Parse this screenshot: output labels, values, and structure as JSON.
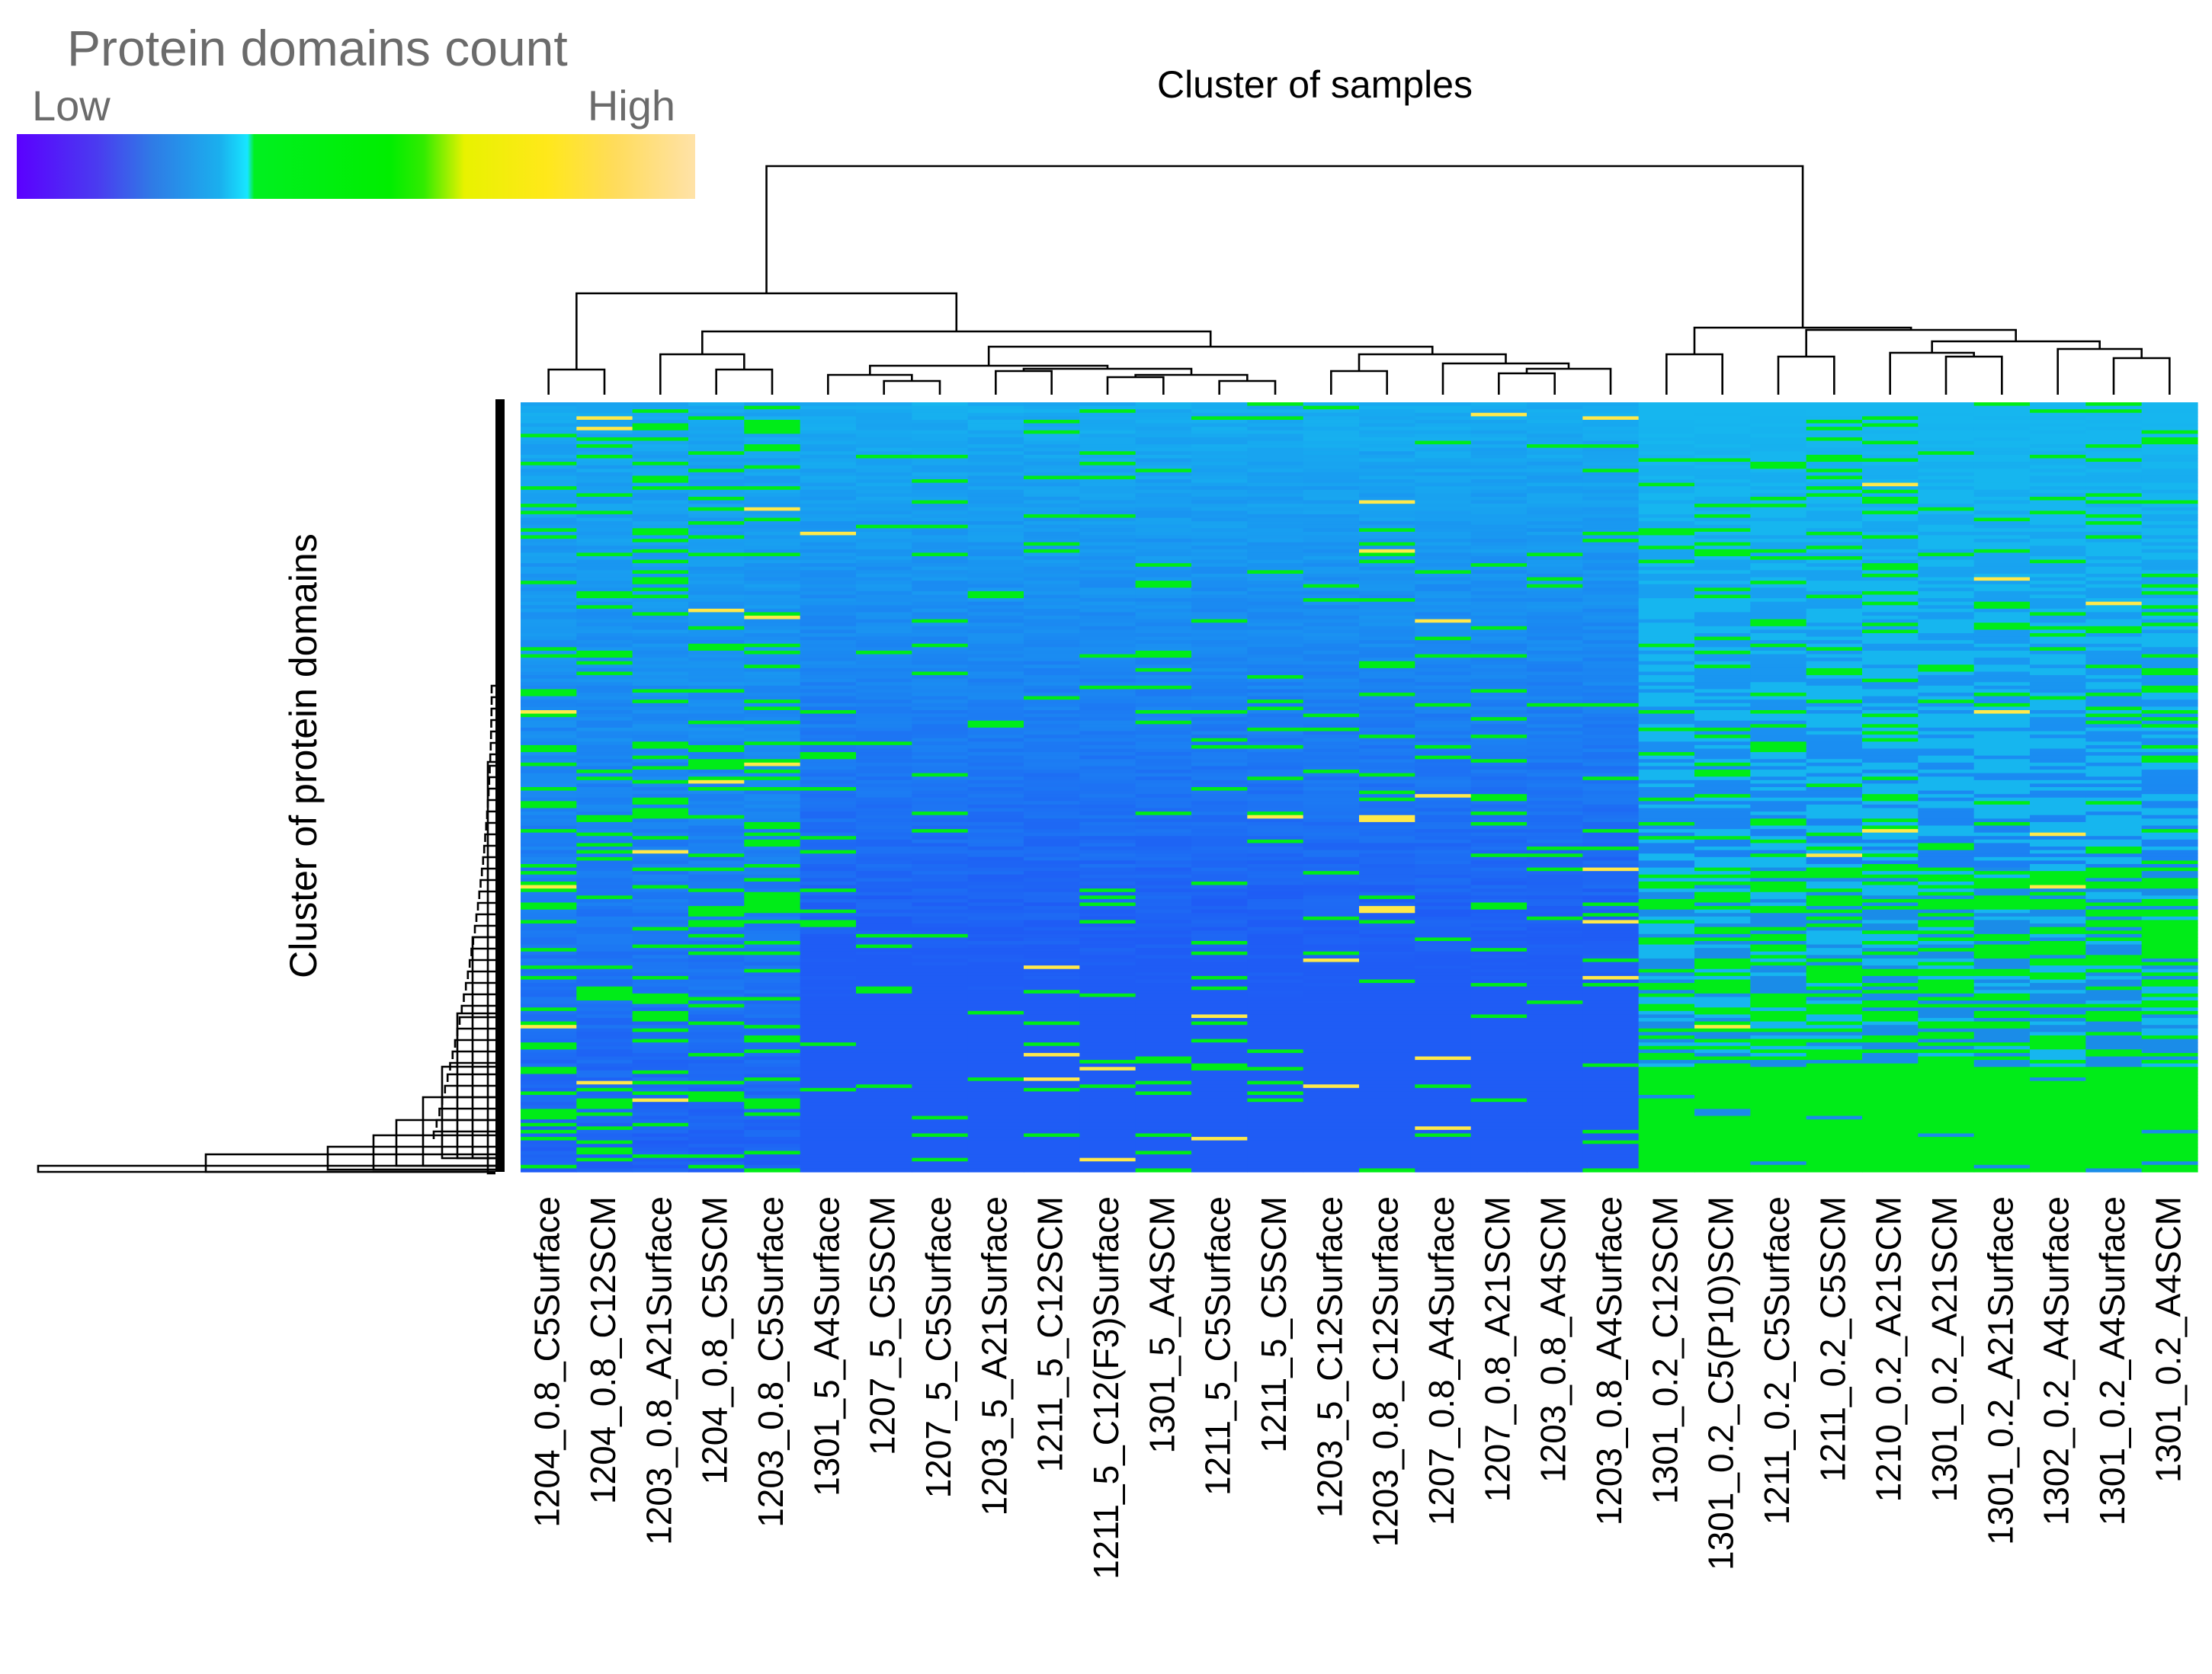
{
  "legend": {
    "title": "Protein domains count",
    "low_label": "Low",
    "high_label": "High",
    "gradient_colors": [
      "#5b00ff",
      "#4a3cf0",
      "#2f7be6",
      "#1ab0ee",
      "#17e6ff",
      "#00f020",
      "#00ee00",
      "#32ec00",
      "#e8f200",
      "#ffe81a",
      "#ffdc5a",
      "#ffe2a8"
    ]
  },
  "colors": {
    "low": "#1f5cf5",
    "mid_blue": "#1a8ce8",
    "light_blue": "#16b6ef",
    "green": "#00ec18",
    "yellow": "#ffe94a",
    "pale": "#fff0c0"
  },
  "chart_data": {
    "type": "heatmap",
    "title": "Cluster of samples",
    "ylabel": "Cluster of protein domains",
    "xlabel": "",
    "value_scale": [
      "Low",
      "High"
    ],
    "samples": [
      "1204_0.8_C5Surface",
      "1204_0.8_C12SCM",
      "1203_0.8_A21Surface",
      "1204_0.8_C5SCM",
      "1203_0.8_C5Surface",
      "1301_5_A4Surface",
      "1207_5_C5SCM",
      "1207_5_C5Surface",
      "1203_5_A21Surface",
      "1211_5_C12SCM",
      "1211_5_C12(F3)Surface",
      "1301_5_A4SCM",
      "1211_5_C5Surface",
      "1211_5_C5SCM",
      "1203_5_C12Surface",
      "1203_0.8_C12Surface",
      "1207_0.8_A4Surface",
      "1207_0.8_A21SCM",
      "1203_0.8_A4SCM",
      "1203_0.8_A4Surface",
      "1301_0.2_C12SCM",
      "1301_0.2_C5(P10)SCM",
      "1211_0.2_C5Surface",
      "1211_0.2_C5SCM",
      "1210_0.2_A21SCM",
      "1301_0.2_A21SCM",
      "1301_0.2_A21Surface",
      "1302_0.2_A4Surface",
      "1301_0.2_A4Surface",
      "1301_0.2_A4SCM"
    ],
    "sample_groups": {
      "top_level_clusters": [
        {
          "members": [
            "1204_0.8_C5Surface",
            "1204_0.8_C12SCM",
            "1203_0.8_A21Surface",
            "1204_0.8_C5SCM",
            "1203_0.8_C5Surface",
            "1301_5_A4Surface",
            "1207_5_C5SCM",
            "1207_5_C5Surface",
            "1203_5_A21Surface",
            "1211_5_C12SCM",
            "1211_5_C12(F3)Surface",
            "1301_5_A4SCM",
            "1211_5_C5Surface",
            "1211_5_C5SCM",
            "1203_5_C12Surface",
            "1203_0.8_C12Surface",
            "1207_0.8_A4Surface",
            "1207_0.8_A21SCM",
            "1203_0.8_A4SCM",
            "1203_0.8_A4Surface"
          ]
        },
        {
          "members": [
            "1301_0.2_C12SCM",
            "1301_0.2_C5(P10)SCM",
            "1211_0.2_C5Surface",
            "1211_0.2_C5SCM",
            "1210_0.2_A21SCM",
            "1301_0.2_A21SCM",
            "1301_0.2_A21Surface",
            "1302_0.2_A4Surface",
            "1301_0.2_A4Surface",
            "1301_0.2_A4SCM"
          ]
        }
      ]
    },
    "column_profile_note": "Samples 1-5 mixed blue/green with green speckles; samples 6-20 predominantly blue, darkest in lower rows; samples 21-30 predominantly green in the lower third of rows",
    "row_count_description": "several hundred protein domains (rows), ordered by hierarchical clustering",
    "grid": false,
    "legend_position": "top-left"
  }
}
